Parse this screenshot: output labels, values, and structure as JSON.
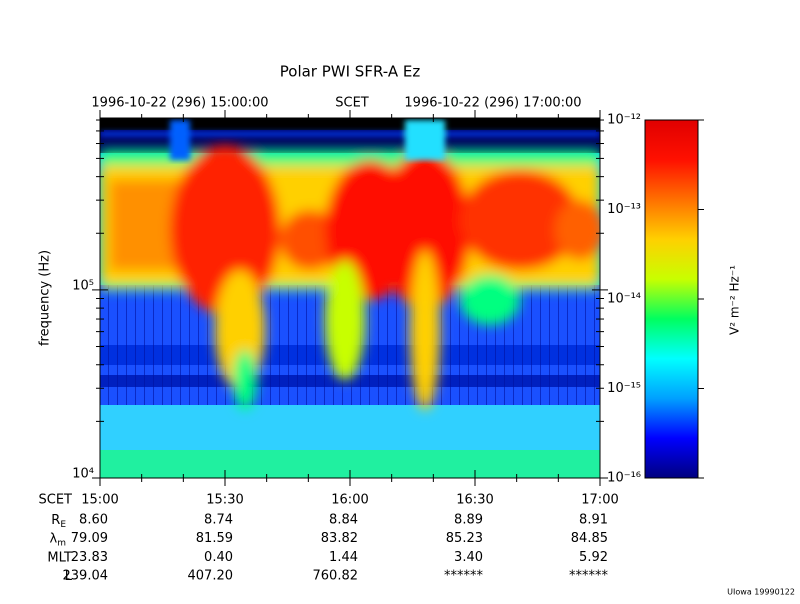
{
  "chart_data": {
    "type": "spectrogram",
    "title": "Polar PWI SFR-A Ez",
    "header": [
      "1996-10-22 (296) 15:00:00",
      "SCET",
      "1996-10-22 (296) 17:00:00"
    ],
    "ylabel": "frequency (Hz)",
    "log_y": true,
    "ylim": [
      10000,
      820000
    ],
    "yticks": [
      {
        "value": 10000,
        "label": "10⁴"
      },
      {
        "value": 100000,
        "label": "10⁵"
      }
    ],
    "yminorticks": [
      20000,
      30000,
      40000,
      50000,
      60000,
      70000,
      80000,
      90000,
      200000,
      300000,
      400000,
      500000,
      600000,
      700000,
      800000
    ],
    "xlim": [
      "15:00",
      "17:00"
    ],
    "xticks": [
      "15:00",
      "15:30",
      "16:00",
      "16:30",
      "17:00"
    ],
    "xminorticks": [
      "15:10",
      "15:20",
      "15:40",
      "15:50",
      "16:10",
      "16:20",
      "16:40",
      "16:50"
    ],
    "colorbar": {
      "label": "V² m⁻² Hz⁻¹",
      "log": true,
      "clim": [
        1e-16,
        1e-12
      ],
      "ticks": [
        {
          "value": 1e-16,
          "label": "10⁻¹⁶"
        },
        {
          "value": 1e-15,
          "label": "10⁻¹⁵"
        },
        {
          "value": 1e-14,
          "label": "10⁻¹⁴"
        },
        {
          "value": 1e-13,
          "label": "10⁻¹³"
        },
        {
          "value": 1e-12,
          "label": "10⁻¹²"
        }
      ],
      "colors": [
        "#00007f",
        "#0000ff",
        "#00a0ff",
        "#00ffff",
        "#00ff60",
        "#c8ff00",
        "#ffd000",
        "#ff7000",
        "#ff1000",
        "#e00000"
      ]
    },
    "ephemeris": {
      "x_label": "SCET",
      "rows": [
        {
          "name": "R",
          "sub": "E",
          "values": [
            "8.60",
            "8.74",
            "8.84",
            "8.89",
            "8.91"
          ]
        },
        {
          "name": "λ",
          "sub": "m",
          "values": [
            "79.09",
            "81.59",
            "83.82",
            "85.23",
            "84.85"
          ]
        },
        {
          "name": "MLT",
          "values": [
            "23.83",
            "0.40",
            "1.44",
            "3.40",
            "5.92"
          ]
        },
        {
          "name": "L",
          "values": [
            "239.04",
            "407.20",
            "760.82",
            "******",
            "******"
          ]
        }
      ]
    },
    "footer": "UIowa 19990122"
  }
}
